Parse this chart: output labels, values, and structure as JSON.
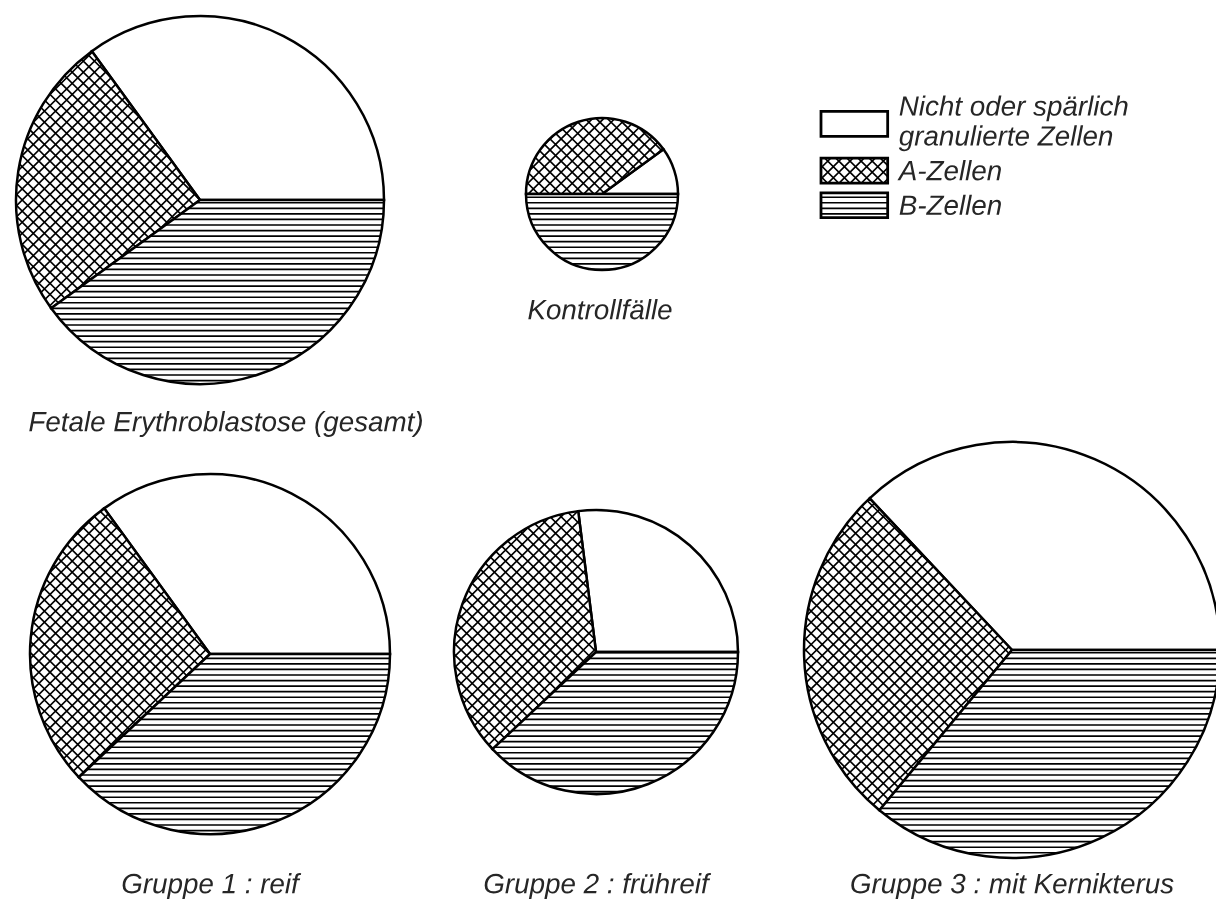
{
  "chart_data": [
    {
      "type": "pie",
      "title": "Fetale Erythroblastose (gesamt)",
      "categories": [
        "Nicht oder spärlich granulierte Zellen",
        "A-Zellen",
        "B-Zellen"
      ],
      "values": [
        35,
        25,
        40
      ],
      "colors": [
        "#ffffff",
        "#000000",
        "#000000"
      ],
      "legend": "right"
    },
    {
      "type": "pie",
      "title": "Kontrollfälle",
      "categories": [
        null,
        null,
        null
      ],
      "values": [
        10,
        40,
        50
      ],
      "colors": [
        "#ffffff",
        "#000000",
        "#000000"
      ]
    },
    {
      "type": "pie",
      "title": "Gruppe 1 : reif",
      "categories": [
        null,
        null,
        null
      ],
      "values": [
        35,
        27,
        38
      ],
      "colors": [
        "#ffffff",
        "#000000",
        "#000000"
      ]
    },
    {
      "type": "pie",
      "title": "Gruppe 2 : frühreif",
      "categories": [
        null,
        null,
        null
      ],
      "values": [
        27,
        35,
        38
      ],
      "colors": [
        "#ffffff",
        "#000000",
        "#000000"
      ]
    },
    {
      "type": "pie",
      "title": "Gruppe 3 : mit Kernikterus",
      "categories": [
        null,
        null,
        null
      ],
      "values": [
        37,
        27,
        36
      ],
      "colors": [
        "#ffffff",
        "#000000",
        "#000000"
      ]
    }
  ]
}
